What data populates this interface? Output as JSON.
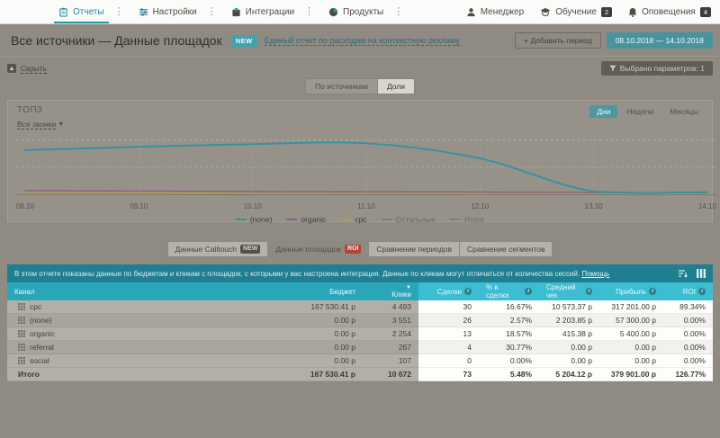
{
  "colors": {
    "accent": "#2aa6ba",
    "accent_bright": "#3cbdd1",
    "info_bar": "#1f7e90",
    "red_badge": "#b2443a",
    "series_none": "#35939f",
    "series_organic": "#8e5a88",
    "series_cpc": "#b39a4a",
    "inactive": "#827e76"
  },
  "nav": {
    "tabs": [
      {
        "id": "reports",
        "label": "Отчеты",
        "icon": "clipboard-icon",
        "active": true
      },
      {
        "id": "settings",
        "label": "Настройки",
        "icon": "sliders-icon",
        "active": false
      },
      {
        "id": "integrations",
        "label": "Интеграции",
        "icon": "puzzle-icon",
        "active": false
      },
      {
        "id": "products",
        "label": "Продукты",
        "icon": "pie-icon",
        "active": false
      }
    ],
    "right": [
      {
        "id": "manager",
        "label": "Менеджер",
        "icon": "person-icon",
        "badge": ""
      },
      {
        "id": "training",
        "label": "Обучение",
        "icon": "graduation-icon",
        "badge": "2"
      },
      {
        "id": "alerts",
        "label": "Оповещения",
        "icon": "bell-icon",
        "badge": "4"
      }
    ]
  },
  "header": {
    "title": "Все источники — Данные площадок",
    "new_badge": "NEW",
    "link": "Единый отчет по расходам на контекстную рекламу",
    "add_period": "+ Добавить период",
    "date_range": "08.10.2018 — 14.10.2018"
  },
  "toolbar": {
    "hide_label": "Скрыть",
    "hide_icon": "collapse-icon",
    "filter_label": "Выбрано параметров: 1"
  },
  "view_toggle": {
    "options": [
      "По источникам",
      "Доли"
    ],
    "selected": "Доли"
  },
  "chart_panel": {
    "title": "ТОП3",
    "filter": "Все звонки",
    "periods": [
      "Дни",
      "Недели",
      "Месяцы"
    ],
    "selected_period": "Дни"
  },
  "chart_data": {
    "type": "line",
    "title": "ТОП3",
    "x": [
      "08.10",
      "09.10",
      "10.10",
      "11.10",
      "12.10",
      "13.10",
      "14.10"
    ],
    "series": [
      {
        "name": "(none)",
        "color": "#35939f",
        "values": [
          555,
          595,
          630,
          640,
          450,
          35,
          25
        ]
      },
      {
        "name": "organic",
        "color": "#8e5a88",
        "values": [
          45,
          40,
          35,
          30,
          28,
          22,
          18
        ]
      },
      {
        "name": "cpc",
        "color": "#b39a4a",
        "values": [
          30,
          25,
          22,
          20,
          16,
          12,
          10
        ]
      }
    ],
    "inactive_series": [
      "Остальные",
      "Итого"
    ],
    "ylim": [
      0,
      700
    ],
    "grid": "dashed",
    "legend_position": "bottom"
  },
  "report_tabs": [
    {
      "label": "Данные Calltouch",
      "badge": "NEW",
      "badge_style": "dark",
      "selected": false
    },
    {
      "label": "Данные площадок",
      "badge": "ROI",
      "badge_style": "red",
      "selected": true
    },
    {
      "label": "Сравнение периодов",
      "badge": "",
      "badge_style": "",
      "selected": false
    },
    {
      "label": "Сравнение сегментов",
      "badge": "",
      "badge_style": "",
      "selected": false
    }
  ],
  "info_bar": {
    "text": "В этом отчете показаны данные по бюджетам и кликам с площадок, с которыми у вас настроена интеграция. Данные по кликам могут отличаться от количества сессий.",
    "link": "Помощь"
  },
  "table": {
    "columns": [
      {
        "label": "Канал",
        "hl": false,
        "info": false,
        "sorted": false
      },
      {
        "label": "Бюджет",
        "hl": false,
        "info": false,
        "sorted": false
      },
      {
        "label": "Клики",
        "hl": false,
        "info": false,
        "sorted": true
      },
      {
        "label": "Сделки",
        "hl": true,
        "info": true,
        "sorted": false
      },
      {
        "label": "% в сделки",
        "hl": true,
        "info": true,
        "sorted": false
      },
      {
        "label": "Средний чек",
        "hl": true,
        "info": true,
        "sorted": false
      },
      {
        "label": "Прибыль",
        "hl": true,
        "info": true,
        "sorted": false
      },
      {
        "label": "ROI",
        "hl": true,
        "info": true,
        "sorted": false
      }
    ],
    "rows": [
      [
        "cpc",
        "167 530.41 р",
        "4 493",
        "30",
        "16.67%",
        "10 573.37 р",
        "317 201.00 р",
        "89.34%"
      ],
      [
        "(none)",
        "0.00 р",
        "3 551",
        "26",
        "2.57%",
        "2 203.85 р",
        "57 300.00 р",
        "0.00%"
      ],
      [
        "organic",
        "0.00 р",
        "2 254",
        "13",
        "18.57%",
        "415.38 р",
        "5 400.00 р",
        "0.00%"
      ],
      [
        "referral",
        "0.00 р",
        "267",
        "4",
        "30.77%",
        "0.00 р",
        "0.00 р",
        "0.00%"
      ],
      [
        "social",
        "0.00 р",
        "107",
        "0",
        "0.00%",
        "0.00 р",
        "0.00 р",
        "0.00%"
      ]
    ],
    "totals": [
      "Итого",
      "167 530.41 р",
      "10 672",
      "73",
      "5.48%",
      "5 204.12 р",
      "379 901.00 р",
      "126.77%"
    ]
  }
}
